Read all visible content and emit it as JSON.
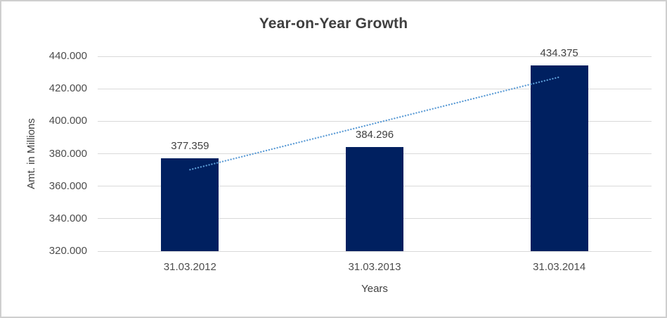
{
  "frame": {
    "background_color": "#ffffff",
    "border_color": "#cfcfcf"
  },
  "chart_data": {
    "type": "bar",
    "title": "Year-on-Year Growth",
    "xlabel": "Years",
    "ylabel": "Amt. in Millions",
    "categories": [
      "31.03.2012",
      "31.03.2013",
      "31.03.2014"
    ],
    "values": [
      377.359,
      384.296,
      434.375
    ],
    "data_labels": [
      "377.359",
      "384.296",
      "434.375"
    ],
    "ylim": [
      320,
      440
    ],
    "ytick_step": 20,
    "ytick_labels": [
      "320.000",
      "340.000",
      "360.000",
      "380.000",
      "400.000",
      "420.000",
      "440.000"
    ],
    "grid": "horizontal-only",
    "legend": "none",
    "bar_color": "#002060",
    "gridline_color": "#d9d9d9",
    "title_color": "#3f3f3f",
    "axis_text_color": "#4d4d4d",
    "trendline": {
      "type": "linear",
      "style": "dotted",
      "color": "#5b9bd5",
      "spans_categories": [
        0,
        2
      ]
    }
  }
}
